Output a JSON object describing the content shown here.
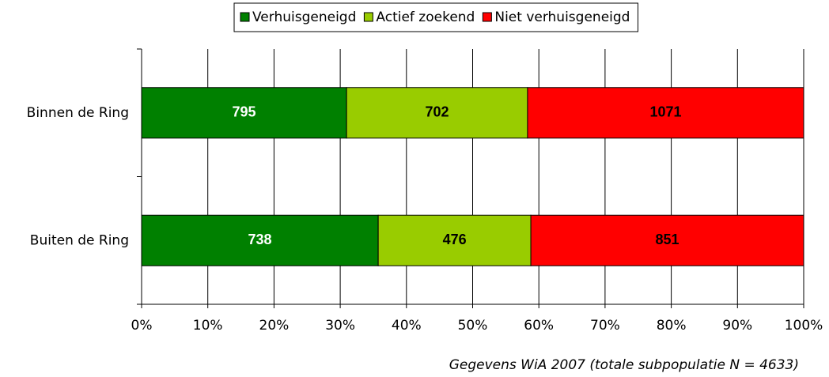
{
  "chart_data": {
    "type": "bar",
    "orientation": "horizontal",
    "stack": "percent",
    "categories": [
      "Binnen de Ring",
      "Buiten de Ring"
    ],
    "series": [
      {
        "name": "Verhuisgeneigd",
        "color": "#008000",
        "label_color": "#ffffff",
        "values": [
          795,
          738
        ]
      },
      {
        "name": "Actief zoekend",
        "color": "#99cc00",
        "label_color": "#000000",
        "values": [
          702,
          476
        ]
      },
      {
        "name": "Niet verhuisgeneigd",
        "color": "#ff0000",
        "label_color": "#000000",
        "values": [
          1071,
          851
        ]
      }
    ],
    "xlim": [
      0,
      100
    ],
    "xticks": [
      {
        "value": 0,
        "label": "0%"
      },
      {
        "value": 10,
        "label": "10%"
      },
      {
        "value": 20,
        "label": "20%"
      },
      {
        "value": 30,
        "label": "30%"
      },
      {
        "value": 40,
        "label": "40%"
      },
      {
        "value": 50,
        "label": "50%"
      },
      {
        "value": 60,
        "label": "60%"
      },
      {
        "value": 70,
        "label": "70%"
      },
      {
        "value": 80,
        "label": "80%"
      },
      {
        "value": 90,
        "label": "90%"
      },
      {
        "value": 100,
        "label": "100%"
      }
    ],
    "grid": true,
    "legend": "top",
    "note": "Gegevens WiA 2007 (totale subpopulatie N = 4633)"
  }
}
